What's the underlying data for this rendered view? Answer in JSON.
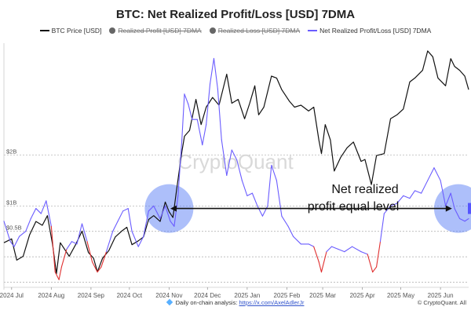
{
  "header": {
    "title": "BTC: Net Realized Profit/Loss [USD] 7DMA"
  },
  "legend": [
    {
      "label": "BTC Price [USD]",
      "color": "#111111",
      "kind": "line",
      "hidden": false
    },
    {
      "label": "Realized Profit [USD] 7DMA",
      "color": "#555555",
      "kind": "dot",
      "hidden": true
    },
    {
      "label": "Realized Loss [USD] 7DMA",
      "color": "#555555",
      "kind": "dot",
      "hidden": true
    },
    {
      "label": "Net Realized Profit/Loss [USD] 7DMA",
      "color": "#6a5cff",
      "kind": "line",
      "hidden": false
    }
  ],
  "annotation": {
    "line1": "Net realized",
    "line2": "profit equal level"
  },
  "watermark": "CryptoQuant",
  "footer": {
    "text": "Daily on-chain analysis: ",
    "link": "https://x.com/AxelAdlerJr",
    "copyright": "© CryptoQuant. All"
  },
  "chart_data": {
    "type": "line",
    "x_ticks": [
      "2024 Jul",
      "2024 Aug",
      "2024 Sep",
      "2024 Oct",
      "2024 Nov",
      "2024 Dec",
      "2025 Jan",
      "2025 Feb",
      "2025 Mar",
      "2025 Apr",
      "2025 May",
      "2025 Jun"
    ],
    "x_range": [
      "2024-06-25",
      "2025-06-23"
    ],
    "y_right": {
      "label": "Net Realized Profit/Loss [USD]",
      "ticks": [
        {
          "value": 0.5,
          "label": "$0.5B"
        },
        {
          "value": 1,
          "label": "$1B"
        },
        {
          "value": 2,
          "label": "$2B"
        }
      ],
      "ylim": [
        -0.6,
        4.2
      ]
    },
    "y_left": {
      "label": "BTC Price [USD]",
      "ylim": [
        50000,
        113000
      ]
    },
    "reference_level": 0.95,
    "highlight_circles": [
      {
        "x": "2024-11-01",
        "y": 0.95
      },
      {
        "x": "2025-06-15",
        "y": 0.95
      }
    ],
    "series": [
      {
        "name": "BTC Price [USD]",
        "color": "#111111",
        "axis": "left",
        "points": [
          [
            "2024-06-25",
            61500
          ],
          [
            "2024-07-01",
            62500
          ],
          [
            "2024-07-05",
            57000
          ],
          [
            "2024-07-10",
            58000
          ],
          [
            "2024-07-15",
            63500
          ],
          [
            "2024-07-20",
            67000
          ],
          [
            "2024-07-25",
            66000
          ],
          [
            "2024-07-29",
            68500
          ],
          [
            "2024-08-02",
            61000
          ],
          [
            "2024-08-05",
            53500
          ],
          [
            "2024-08-08",
            61500
          ],
          [
            "2024-08-12",
            59500
          ],
          [
            "2024-08-15",
            58000
          ],
          [
            "2024-08-20",
            61000
          ],
          [
            "2024-08-25",
            64500
          ],
          [
            "2024-08-30",
            59000
          ],
          [
            "2024-09-03",
            57500
          ],
          [
            "2024-09-06",
            54000
          ],
          [
            "2024-09-10",
            57500
          ],
          [
            "2024-09-15",
            59500
          ],
          [
            "2024-09-20",
            63000
          ],
          [
            "2024-09-25",
            64500
          ],
          [
            "2024-09-29",
            65500
          ],
          [
            "2024-10-03",
            61000
          ],
          [
            "2024-10-08",
            62000
          ],
          [
            "2024-10-12",
            63000
          ],
          [
            "2024-10-16",
            67500
          ],
          [
            "2024-10-20",
            68500
          ],
          [
            "2024-10-25",
            67000
          ],
          [
            "2024-10-29",
            72000
          ],
          [
            "2024-11-01",
            69500
          ],
          [
            "2024-11-04",
            68000
          ],
          [
            "2024-11-07",
            75500
          ],
          [
            "2024-11-11",
            85000
          ],
          [
            "2024-11-13",
            89000
          ],
          [
            "2024-11-17",
            90500
          ],
          [
            "2024-11-22",
            98500
          ],
          [
            "2024-11-26",
            92000
          ],
          [
            "2024-11-30",
            96500
          ],
          [
            "2024-12-05",
            99000
          ],
          [
            "2024-12-10",
            97000
          ],
          [
            "2024-12-16",
            105000
          ],
          [
            "2024-12-20",
            97500
          ],
          [
            "2024-12-25",
            98500
          ],
          [
            "2024-12-30",
            93500
          ],
          [
            "2025-01-03",
            97500
          ],
          [
            "2025-01-07",
            102000
          ],
          [
            "2025-01-10",
            94500
          ],
          [
            "2025-01-14",
            96500
          ],
          [
            "2025-01-20",
            104500
          ],
          [
            "2025-01-24",
            104000
          ],
          [
            "2025-01-28",
            101000
          ],
          [
            "2025-02-03",
            98000
          ],
          [
            "2025-02-07",
            96500
          ],
          [
            "2025-02-12",
            97000
          ],
          [
            "2025-02-18",
            95500
          ],
          [
            "2025-02-22",
            96500
          ],
          [
            "2025-02-26",
            88000
          ],
          [
            "2025-02-28",
            84500
          ],
          [
            "2025-03-03",
            92000
          ],
          [
            "2025-03-07",
            88000
          ],
          [
            "2025-03-10",
            80000
          ],
          [
            "2025-03-15",
            83500
          ],
          [
            "2025-03-20",
            86000
          ],
          [
            "2025-03-25",
            87500
          ],
          [
            "2025-03-31",
            82500
          ],
          [
            "2025-04-03",
            83000
          ],
          [
            "2025-04-08",
            76500
          ],
          [
            "2025-04-12",
            84000
          ],
          [
            "2025-04-18",
            84500
          ],
          [
            "2025-04-23",
            93500
          ],
          [
            "2025-04-28",
            94500
          ],
          [
            "2025-05-03",
            96000
          ],
          [
            "2025-05-08",
            103000
          ],
          [
            "2025-05-12",
            104000
          ],
          [
            "2025-05-18",
            106000
          ],
          [
            "2025-05-22",
            111000
          ],
          [
            "2025-05-26",
            109500
          ],
          [
            "2025-05-30",
            104000
          ],
          [
            "2025-06-05",
            102000
          ],
          [
            "2025-06-09",
            109000
          ],
          [
            "2025-06-12",
            107000
          ],
          [
            "2025-06-16",
            106000
          ],
          [
            "2025-06-20",
            104500
          ],
          [
            "2025-06-23",
            101000
          ]
        ]
      },
      {
        "name": "Net Realized Profit/Loss [USD] 7DMA",
        "color": "#6a5cff",
        "negative_color": "#e03030",
        "axis": "right",
        "points": [
          [
            "2024-06-25",
            0.7
          ],
          [
            "2024-06-30",
            0.3
          ],
          [
            "2024-07-03",
            0.2
          ],
          [
            "2024-07-07",
            0.4
          ],
          [
            "2024-07-12",
            0.5
          ],
          [
            "2024-07-16",
            0.75
          ],
          [
            "2024-07-20",
            0.95
          ],
          [
            "2024-07-24",
            0.85
          ],
          [
            "2024-07-28",
            1.1
          ],
          [
            "2024-08-01",
            0.6
          ],
          [
            "2024-08-04",
            -0.3
          ],
          [
            "2024-08-07",
            -0.45
          ],
          [
            "2024-08-09",
            -0.2
          ],
          [
            "2024-08-13",
            0.15
          ],
          [
            "2024-08-17",
            0.3
          ],
          [
            "2024-08-21",
            0.25
          ],
          [
            "2024-08-25",
            0.65
          ],
          [
            "2024-08-29",
            0.3
          ],
          [
            "2024-09-02",
            -0.1
          ],
          [
            "2024-09-06",
            -0.3
          ],
          [
            "2024-09-09",
            -0.2
          ],
          [
            "2024-09-13",
            0.1
          ],
          [
            "2024-09-18",
            0.5
          ],
          [
            "2024-09-22",
            0.7
          ],
          [
            "2024-09-26",
            0.9
          ],
          [
            "2024-09-30",
            0.95
          ],
          [
            "2024-10-03",
            0.5
          ],
          [
            "2024-10-08",
            0.2
          ],
          [
            "2024-10-12",
            0.4
          ],
          [
            "2024-10-16",
            0.9
          ],
          [
            "2024-10-20",
            1.0
          ],
          [
            "2024-10-25",
            0.75
          ],
          [
            "2024-10-29",
            1.0
          ],
          [
            "2024-11-02",
            0.7
          ],
          [
            "2024-11-05",
            0.6
          ],
          [
            "2024-11-08",
            1.2
          ],
          [
            "2024-11-11",
            2.3
          ],
          [
            "2024-11-13",
            3.2
          ],
          [
            "2024-11-16",
            3.0
          ],
          [
            "2024-11-19",
            2.7
          ],
          [
            "2024-11-23",
            2.7
          ],
          [
            "2024-11-27",
            2.2
          ],
          [
            "2024-11-30",
            2.6
          ],
          [
            "2024-12-03",
            3.4
          ],
          [
            "2024-12-06",
            3.9
          ],
          [
            "2024-12-09",
            3.3
          ],
          [
            "2024-12-12",
            2.3
          ],
          [
            "2024-12-16",
            1.6
          ],
          [
            "2024-12-20",
            2.1
          ],
          [
            "2024-12-24",
            1.9
          ],
          [
            "2024-12-28",
            1.5
          ],
          [
            "2025-01-01",
            1.2
          ],
          [
            "2025-01-05",
            1.25
          ],
          [
            "2025-01-09",
            1.0
          ],
          [
            "2025-01-13",
            0.8
          ],
          [
            "2025-01-17",
            1.0
          ],
          [
            "2025-01-20",
            1.8
          ],
          [
            "2025-01-24",
            1.5
          ],
          [
            "2025-01-28",
            0.8
          ],
          [
            "2025-02-02",
            0.6
          ],
          [
            "2025-02-06",
            0.4
          ],
          [
            "2025-02-12",
            0.25
          ],
          [
            "2025-02-18",
            0.25
          ],
          [
            "2025-02-22",
            0.2
          ],
          [
            "2025-02-26",
            -0.1
          ],
          [
            "2025-02-28",
            -0.3
          ],
          [
            "2025-03-04",
            0.1
          ],
          [
            "2025-03-08",
            0.2
          ],
          [
            "2025-03-13",
            0.15
          ],
          [
            "2025-03-18",
            0.1
          ],
          [
            "2025-03-24",
            0.2
          ],
          [
            "2025-03-31",
            0.1
          ],
          [
            "2025-04-05",
            0.05
          ],
          [
            "2025-04-09",
            -0.3
          ],
          [
            "2025-04-12",
            -0.2
          ],
          [
            "2025-04-15",
            0.3
          ],
          [
            "2025-04-18",
            0.85
          ],
          [
            "2025-04-23",
            1.0
          ],
          [
            "2025-04-28",
            1.05
          ],
          [
            "2025-05-03",
            1.2
          ],
          [
            "2025-05-08",
            1.15
          ],
          [
            "2025-05-12",
            1.3
          ],
          [
            "2025-05-17",
            1.25
          ],
          [
            "2025-05-22",
            1.5
          ],
          [
            "2025-05-27",
            1.75
          ],
          [
            "2025-06-01",
            1.5
          ],
          [
            "2025-06-05",
            1.0
          ],
          [
            "2025-06-09",
            1.25
          ],
          [
            "2025-06-12",
            0.95
          ],
          [
            "2025-06-16",
            0.75
          ],
          [
            "2025-06-20",
            0.7
          ],
          [
            "2025-06-23",
            0.75
          ]
        ]
      }
    ],
    "grid": true
  }
}
